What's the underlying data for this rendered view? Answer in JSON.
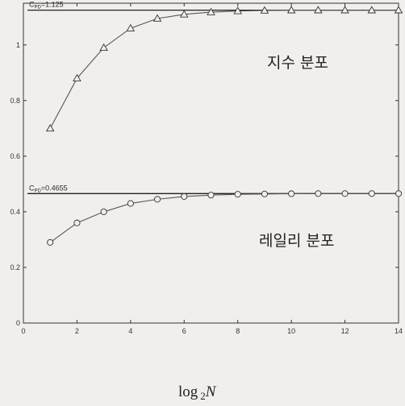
{
  "chart_data": {
    "type": "line",
    "title": "",
    "xlabel": {
      "prefix": "log",
      "subscript": "2",
      "variable": "N"
    },
    "ylabel": "",
    "xlim": [
      0,
      14
    ],
    "ylim": [
      0,
      1.15
    ],
    "x_ticks": [
      "0",
      "2",
      "4",
      "6",
      "8",
      "10",
      "12",
      "14"
    ],
    "y_ticks": [
      "0",
      "0.2",
      "0.4",
      "0.6",
      "0.8",
      "1"
    ],
    "grid": false,
    "x": [
      1,
      2,
      3,
      4,
      5,
      6,
      7,
      8,
      9,
      10,
      11,
      12,
      13,
      14
    ],
    "series": [
      {
        "name": "지수 분포",
        "marker": "triangle",
        "values": [
          0.7,
          0.88,
          0.99,
          1.06,
          1.095,
          1.11,
          1.118,
          1.122,
          1.124,
          1.125,
          1.125,
          1.125,
          1.125,
          1.125
        ]
      },
      {
        "name": "레일리 분포",
        "marker": "circle",
        "values": [
          0.29,
          0.36,
          0.4,
          0.43,
          0.445,
          0.455,
          0.46,
          0.463,
          0.464,
          0.465,
          0.4655,
          0.4655,
          0.4655,
          0.4655
        ]
      }
    ],
    "reference_lines": [
      {
        "value": 1.125,
        "label_main": "C",
        "label_sub": "PD",
        "label_rest": "=1.125"
      },
      {
        "value": 0.4655,
        "label_main": "C",
        "label_sub": "PD",
        "label_rest": "=0.4655"
      }
    ]
  }
}
